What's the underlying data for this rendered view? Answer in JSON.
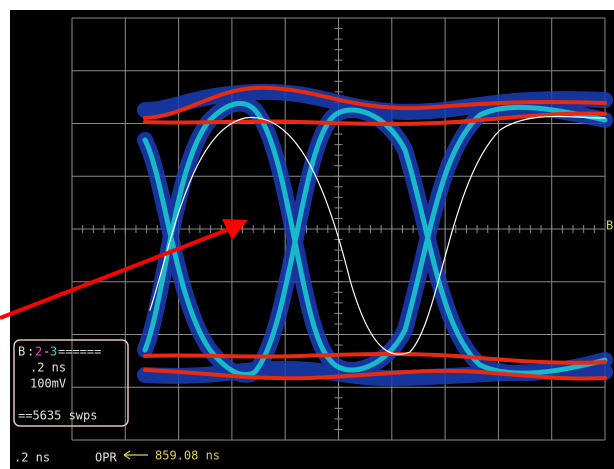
{
  "sidebar": {
    "channel": "B",
    "separator": ":",
    "trace_a": "2",
    "dash": "-",
    "trace_b": "3",
    "fill": "======",
    "timebase": ".2 ns",
    "scale": "100mV",
    "sweeps": "==5635 swps"
  },
  "status": {
    "timebase": ".2 ns",
    "mode": "OPR",
    "marker": "859.08 ns"
  },
  "right_marker": "B"
}
